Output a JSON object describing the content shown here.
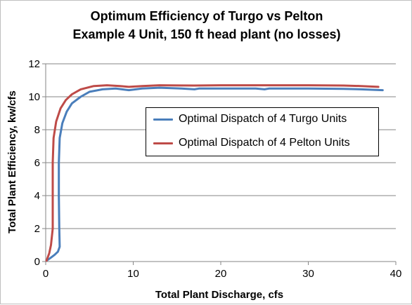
{
  "chart_data": {
    "type": "line",
    "title": "Optimum Efficiency of Turgo vs Pelton",
    "subtitle": "Example 4 Unit, 150 ft head plant (no losses)",
    "xlabel": "Total Plant Discharge, cfs",
    "ylabel": "Total Plant Efficiency, kw/cfs",
    "xlim": [
      0,
      40
    ],
    "ylim": [
      0,
      12
    ],
    "xticks": [
      0,
      10,
      20,
      30,
      40
    ],
    "yticks": [
      0,
      2,
      4,
      6,
      8,
      10,
      12
    ],
    "grid": "horizontal",
    "legend_position": "center-right",
    "series": [
      {
        "name": "Optimal Dispatch of 4 Turgo Units",
        "color": "#4a7ebb",
        "points": [
          [
            0.1,
            0.05
          ],
          [
            0.5,
            0.2
          ],
          [
            1.0,
            0.4
          ],
          [
            1.4,
            0.6
          ],
          [
            1.6,
            0.9
          ],
          [
            1.55,
            2.0
          ],
          [
            1.5,
            4.0
          ],
          [
            1.5,
            6.0
          ],
          [
            1.6,
            7.5
          ],
          [
            1.9,
            8.4
          ],
          [
            2.4,
            9.1
          ],
          [
            3.0,
            9.6
          ],
          [
            4.0,
            10.0
          ],
          [
            5.0,
            10.3
          ],
          [
            6.5,
            10.45
          ],
          [
            8.0,
            10.5
          ],
          [
            9.5,
            10.4
          ],
          [
            11.0,
            10.5
          ],
          [
            13.0,
            10.55
          ],
          [
            15.5,
            10.5
          ],
          [
            17.0,
            10.45
          ],
          [
            17.5,
            10.5
          ],
          [
            20.0,
            10.5
          ],
          [
            24.0,
            10.5
          ],
          [
            25.0,
            10.45
          ],
          [
            25.5,
            10.5
          ],
          [
            30.0,
            10.5
          ],
          [
            34.0,
            10.48
          ],
          [
            36.0,
            10.45
          ],
          [
            38.5,
            10.4
          ]
        ]
      },
      {
        "name": "Optimal Dispatch of 4 Pelton Units",
        "color": "#be4b48",
        "points": [
          [
            0.1,
            0.05
          ],
          [
            0.4,
            0.5
          ],
          [
            0.6,
            1.0
          ],
          [
            0.8,
            2.0
          ],
          [
            0.8,
            4.0
          ],
          [
            0.8,
            6.0
          ],
          [
            0.9,
            7.5
          ],
          [
            1.2,
            8.5
          ],
          [
            1.7,
            9.3
          ],
          [
            2.3,
            9.8
          ],
          [
            3.0,
            10.15
          ],
          [
            4.0,
            10.45
          ],
          [
            5.5,
            10.65
          ],
          [
            7.0,
            10.7
          ],
          [
            8.5,
            10.65
          ],
          [
            9.5,
            10.6
          ],
          [
            11.0,
            10.65
          ],
          [
            13.0,
            10.7
          ],
          [
            17.0,
            10.68
          ],
          [
            20.0,
            10.7
          ],
          [
            25.0,
            10.7
          ],
          [
            30.0,
            10.7
          ],
          [
            34.0,
            10.68
          ],
          [
            36.0,
            10.65
          ],
          [
            38.0,
            10.6
          ]
        ]
      }
    ]
  }
}
